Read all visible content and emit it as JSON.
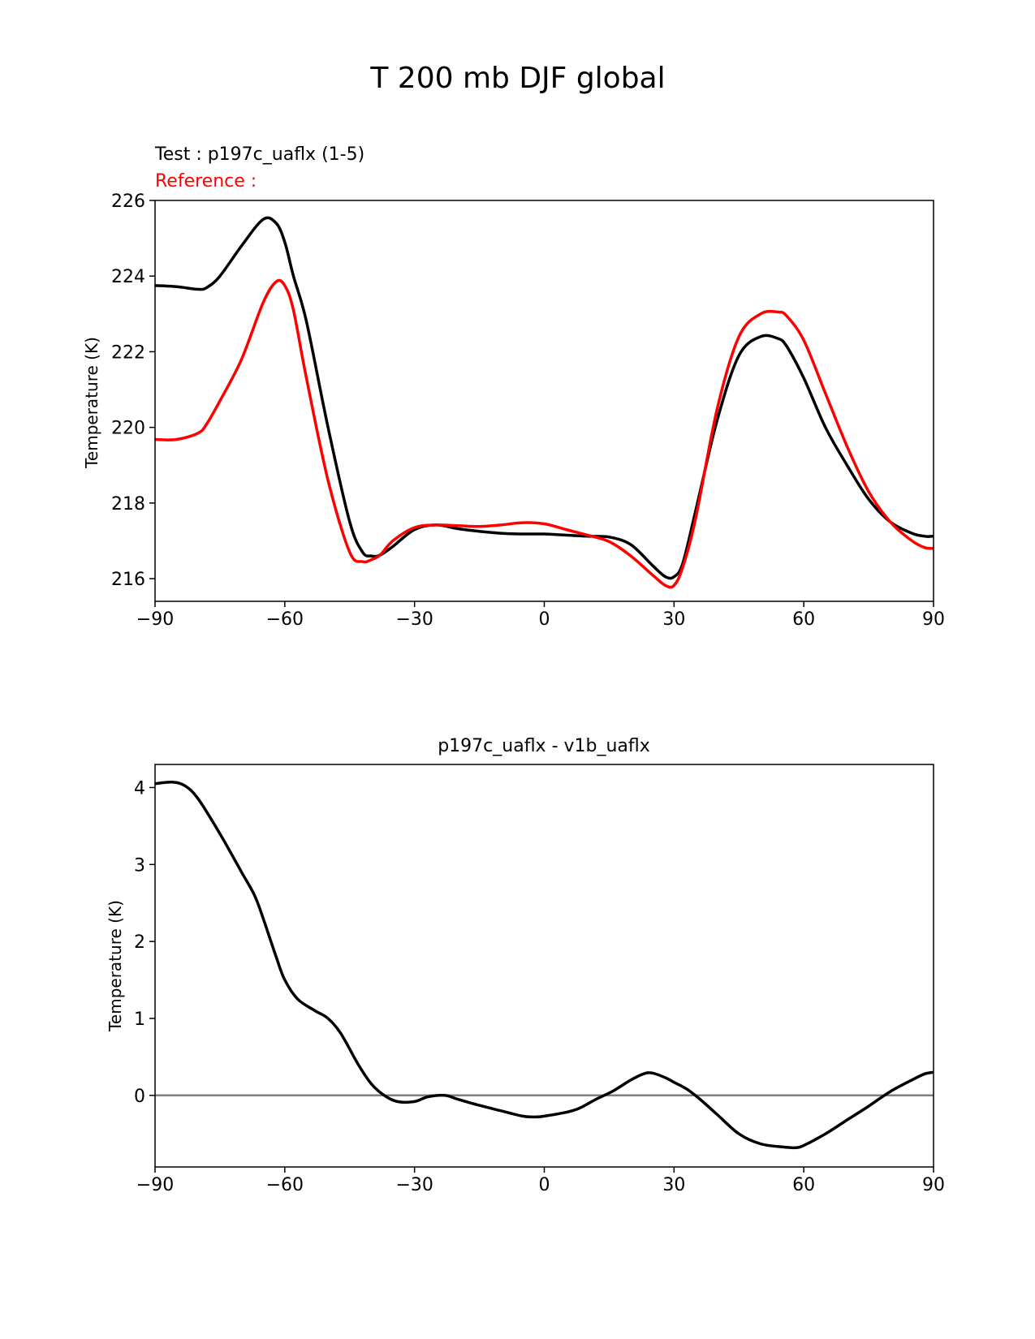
{
  "suptitle": "T 200 mb DJF global",
  "colors": {
    "test": "#000000",
    "reference": "#ff0000",
    "zero_line": "#808080"
  },
  "chart_data": [
    {
      "type": "line",
      "title_test": "Test : p197c_uaflx (1-5)",
      "title_reference": "Reference :",
      "xlabel": "",
      "ylabel": "Temperature (K)",
      "xlim": [
        -90,
        90
      ],
      "ylim": [
        215.4,
        226.0
      ],
      "xticks": [
        -90,
        -60,
        -30,
        0,
        30,
        60,
        90
      ],
      "xtick_labels": [
        "−90",
        "−60",
        "−30",
        "0",
        "30",
        "60",
        "90"
      ],
      "yticks": [
        216,
        218,
        220,
        222,
        224,
        226
      ],
      "ytick_labels": [
        "216",
        "218",
        "220",
        "222",
        "224",
        "226"
      ],
      "grid": false,
      "series": [
        {
          "role": "test",
          "color": "#000000",
          "x": [
            -90,
            -85,
            -80,
            -78,
            -75,
            -70,
            -65,
            -62,
            -60,
            -58,
            -55,
            -50,
            -45,
            -42,
            -40,
            -38,
            -35,
            -30,
            -25,
            -20,
            -15,
            -10,
            -5,
            0,
            5,
            10,
            15,
            20,
            25,
            28,
            30,
            32,
            35,
            40,
            45,
            50,
            54,
            56,
            60,
            65,
            70,
            75,
            80,
            85,
            88,
            90
          ],
          "y": [
            223.75,
            223.72,
            223.65,
            223.7,
            224.0,
            224.8,
            225.5,
            225.4,
            224.9,
            224.0,
            222.8,
            220.0,
            217.5,
            216.7,
            216.6,
            216.62,
            216.85,
            217.3,
            217.42,
            217.32,
            217.25,
            217.2,
            217.18,
            217.18,
            217.15,
            217.12,
            217.1,
            216.9,
            216.35,
            216.05,
            216.05,
            216.4,
            217.8,
            220.2,
            221.9,
            222.4,
            222.35,
            222.15,
            221.3,
            220.0,
            219.0,
            218.1,
            217.5,
            217.2,
            217.12,
            217.12
          ]
        },
        {
          "role": "reference",
          "color": "#ff0000",
          "x": [
            -90,
            -85,
            -80,
            -78,
            -75,
            -70,
            -65,
            -62,
            -60,
            -58,
            -55,
            -50,
            -45,
            -42,
            -40,
            -38,
            -35,
            -30,
            -25,
            -20,
            -15,
            -10,
            -5,
            0,
            5,
            10,
            15,
            20,
            25,
            28,
            30,
            32,
            35,
            40,
            45,
            50,
            54,
            56,
            60,
            65,
            70,
            75,
            80,
            85,
            88,
            90
          ],
          "y": [
            219.68,
            219.68,
            219.85,
            220.1,
            220.7,
            221.8,
            223.3,
            223.85,
            223.75,
            223.1,
            221.3,
            218.6,
            216.7,
            216.45,
            216.5,
            216.62,
            217.0,
            217.35,
            217.42,
            217.4,
            217.38,
            217.42,
            217.48,
            217.45,
            217.3,
            217.15,
            216.98,
            216.6,
            216.1,
            215.82,
            215.82,
            216.3,
            217.6,
            220.5,
            222.4,
            223.0,
            223.05,
            222.95,
            222.3,
            220.9,
            219.5,
            218.3,
            217.5,
            217.0,
            216.82,
            216.8
          ]
        }
      ]
    },
    {
      "type": "line",
      "title": "p197c_uaflx - v1b_uaflx",
      "xlabel": "",
      "ylabel": "Temperature (K)",
      "xlim": [
        -90,
        90
      ],
      "ylim": [
        -0.93,
        4.3
      ],
      "xticks": [
        -90,
        -60,
        -30,
        0,
        30,
        60,
        90
      ],
      "xtick_labels": [
        "−90",
        "−60",
        "−30",
        "0",
        "30",
        "60",
        "90"
      ],
      "yticks": [
        0,
        1,
        2,
        3,
        4
      ],
      "ytick_labels": [
        "0",
        "1",
        "2",
        "3",
        "4"
      ],
      "grid": false,
      "zero_line": true,
      "series": [
        {
          "role": "difference",
          "color": "#000000",
          "x": [
            -90,
            -86,
            -83,
            -80,
            -75,
            -70,
            -67,
            -65,
            -62,
            -60,
            -57,
            -53,
            -50,
            -47,
            -43,
            -40,
            -37,
            -34,
            -30,
            -27,
            -23,
            -20,
            -15,
            -10,
            -5,
            -2,
            0,
            5,
            8,
            12,
            16,
            20,
            23,
            25,
            28,
            30,
            33,
            36,
            40,
            45,
            50,
            55,
            58,
            60,
            65,
            70,
            75,
            80,
            85,
            88,
            90
          ],
          "y": [
            4.05,
            4.07,
            4.02,
            3.85,
            3.4,
            2.9,
            2.6,
            2.3,
            1.8,
            1.5,
            1.25,
            1.1,
            1.0,
            0.8,
            0.4,
            0.15,
            0.0,
            -0.08,
            -0.08,
            -0.02,
            0.0,
            -0.05,
            -0.13,
            -0.2,
            -0.27,
            -0.28,
            -0.27,
            -0.22,
            -0.17,
            -0.05,
            0.06,
            0.2,
            0.28,
            0.29,
            0.23,
            0.17,
            0.08,
            -0.05,
            -0.25,
            -0.5,
            -0.63,
            -0.67,
            -0.68,
            -0.65,
            -0.5,
            -0.32,
            -0.14,
            0.05,
            0.2,
            0.28,
            0.3
          ]
        }
      ]
    }
  ]
}
